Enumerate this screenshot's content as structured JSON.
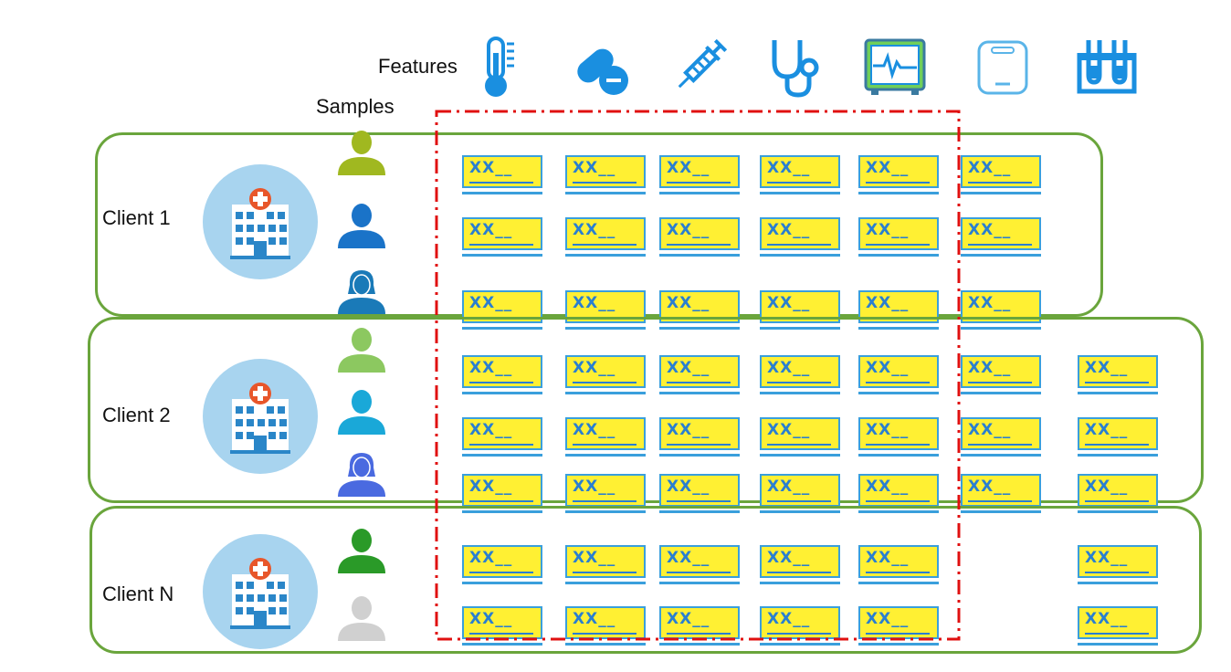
{
  "header": {
    "features_label": "Features",
    "samples_label": "Samples"
  },
  "feature_icons": [
    "thermometer-icon",
    "pill-capsule-icon",
    "syringe-icon",
    "stethoscope-icon",
    "heart-monitor-icon",
    "scale-icon",
    "test-tubes-icon"
  ],
  "clients": [
    {
      "name": "Client 1",
      "samples": [
        {
          "person_icon": "person-male-icon",
          "color": "#a0b820",
          "features": [
            1,
            1,
            1,
            1,
            1,
            1,
            0
          ]
        },
        {
          "person_icon": "person-male-icon",
          "color": "#1a73c8",
          "features": [
            1,
            1,
            1,
            1,
            1,
            1,
            0
          ]
        },
        {
          "person_icon": "person-female-icon",
          "color": "#1a7ab8",
          "features": [
            1,
            1,
            1,
            1,
            1,
            1,
            0
          ]
        }
      ]
    },
    {
      "name": "Client 2",
      "samples": [
        {
          "person_icon": "person-male-icon",
          "color": "#8cc860",
          "features": [
            1,
            1,
            1,
            1,
            1,
            1,
            1
          ]
        },
        {
          "person_icon": "person-male-icon",
          "color": "#1aa8d8",
          "features": [
            1,
            1,
            1,
            1,
            1,
            1,
            1
          ]
        },
        {
          "person_icon": "person-female-icon",
          "color": "#4a6ae0",
          "features": [
            1,
            1,
            1,
            1,
            1,
            1,
            1
          ]
        }
      ]
    },
    {
      "name": "Client N",
      "samples": [
        {
          "person_icon": "person-male-icon",
          "color": "#2a9a28",
          "features": [
            1,
            1,
            1,
            1,
            1,
            0,
            1
          ]
        },
        {
          "person_icon": "person-male-icon",
          "color": "#d0d0d0",
          "features": [
            1,
            1,
            1,
            1,
            1,
            0,
            1
          ]
        }
      ]
    }
  ],
  "cell_text": "XX__",
  "colors": {
    "client_border": "#6aa53c",
    "cell_fill": "#fff033",
    "cell_border": "#3a9fdc",
    "cell_text": "#2a7fd0",
    "highlight_frame": "#e01010",
    "hospital_circle": "#a8d4ef",
    "icon_blue": "#1a8fe0"
  }
}
